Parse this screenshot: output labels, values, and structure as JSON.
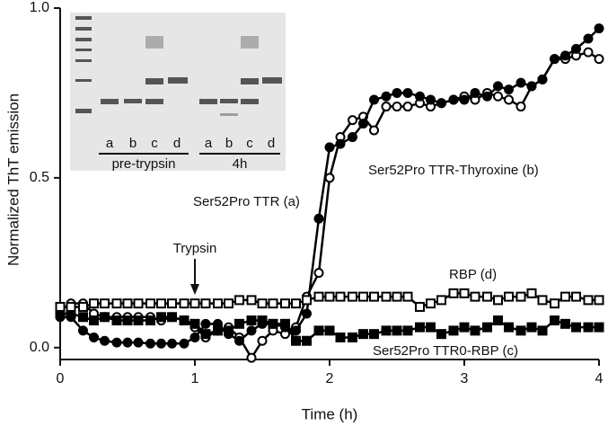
{
  "chart_data": {
    "type": "line",
    "xlabel": "Time (h)",
    "ylabel": "Normalized ThT emission",
    "xlim": [
      0,
      4
    ],
    "ylim": [
      -0.035,
      1
    ],
    "xticks": [
      0,
      1,
      2,
      3,
      4
    ],
    "yticks": [
      {
        "value": 0,
        "label": "0.0"
      },
      {
        "value": 0.5,
        "label": "0.5"
      },
      {
        "value": 1,
        "label": "1.0"
      }
    ],
    "x": [
      0,
      0.08,
      0.17,
      0.25,
      0.33,
      0.42,
      0.5,
      0.58,
      0.67,
      0.75,
      0.83,
      0.92,
      1,
      1.08,
      1.17,
      1.25,
      1.33,
      1.42,
      1.5,
      1.58,
      1.67,
      1.75,
      1.83,
      1.92,
      2,
      2.08,
      2.17,
      2.25,
      2.33,
      2.42,
      2.5,
      2.58,
      2.67,
      2.75,
      2.83,
      2.92,
      3,
      3.08,
      3.17,
      3.25,
      3.33,
      3.42,
      3.5,
      3.58,
      3.67,
      3.75,
      3.83,
      3.92,
      4
    ],
    "series": [
      {
        "name": "Ser52Pro TTR (a)",
        "color": "#000000",
        "marker": "circle",
        "filled": false,
        "values": [
          0.11,
          0.13,
          0.13,
          0.1,
          0.09,
          0.09,
          0.09,
          0.09,
          0.09,
          0.08,
          0.09,
          0.08,
          0.06,
          0.03,
          0.05,
          0.06,
          0.03,
          -0.03,
          0.02,
          0.05,
          0.04,
          0.06,
          0.15,
          0.22,
          0.5,
          0.62,
          0.67,
          0.68,
          0.64,
          0.71,
          0.71,
          0.71,
          0.72,
          0.71,
          0.72,
          0.73,
          0.74,
          0.73,
          0.75,
          0.74,
          0.73,
          0.71,
          0.77,
          0.79,
          0.85,
          0.85,
          0.86,
          0.87,
          0.85
        ]
      },
      {
        "name": "Ser52Pro TTR-Thyroxine (b)",
        "color": "#000000",
        "marker": "circle",
        "filled": true,
        "values": [
          0.09,
          0.09,
          0.05,
          0.03,
          0.02,
          0.015,
          0.015,
          0.015,
          0.012,
          0.012,
          0.012,
          0.012,
          0.03,
          0.07,
          0.07,
          0.04,
          0.02,
          0.05,
          0.07,
          0.07,
          0.06,
          0.05,
          0.1,
          0.38,
          0.59,
          0.6,
          0.62,
          0.66,
          0.73,
          0.74,
          0.75,
          0.75,
          0.74,
          0.73,
          0.72,
          0.73,
          0.73,
          0.75,
          0.74,
          0.77,
          0.76,
          0.78,
          0.77,
          0.79,
          0.85,
          0.86,
          0.88,
          0.91,
          0.94
        ]
      },
      {
        "name": "Ser52Pro TTR0-RBP (c)",
        "color": "#000000",
        "marker": "square",
        "filled": true,
        "values": [
          0.1,
          0.1,
          0.09,
          0.08,
          0.09,
          0.08,
          0.08,
          0.08,
          0.08,
          0.09,
          0.09,
          0.08,
          0.07,
          0.04,
          0.05,
          0.05,
          0.07,
          0.08,
          0.08,
          0.07,
          0.07,
          0.02,
          0.02,
          0.05,
          0.05,
          0.03,
          0.03,
          0.04,
          0.04,
          0.05,
          0.05,
          0.05,
          0.06,
          0.06,
          0.04,
          0.05,
          0.06,
          0.05,
          0.06,
          0.08,
          0.06,
          0.05,
          0.06,
          0.05,
          0.08,
          0.07,
          0.06,
          0.06,
          0.06
        ]
      },
      {
        "name": "RBP (d)",
        "color": "#000000",
        "marker": "square",
        "filled": false,
        "values": [
          0.12,
          0.12,
          0.12,
          0.13,
          0.13,
          0.13,
          0.13,
          0.13,
          0.13,
          0.13,
          0.13,
          0.13,
          0.13,
          0.13,
          0.13,
          0.13,
          0.14,
          0.14,
          0.13,
          0.13,
          0.13,
          0.13,
          0.14,
          0.15,
          0.15,
          0.15,
          0.15,
          0.15,
          0.15,
          0.15,
          0.15,
          0.15,
          0.12,
          0.13,
          0.14,
          0.16,
          0.16,
          0.15,
          0.15,
          0.14,
          0.15,
          0.15,
          0.16,
          0.14,
          0.13,
          0.15,
          0.15,
          0.14,
          0.14
        ]
      }
    ],
    "annotation": "Trypsin",
    "inset": {
      "lanes": [
        "a",
        "b",
        "c",
        "d",
        "a",
        "b",
        "c",
        "d"
      ],
      "groups": [
        "pre-trypsin",
        "4h"
      ]
    }
  }
}
